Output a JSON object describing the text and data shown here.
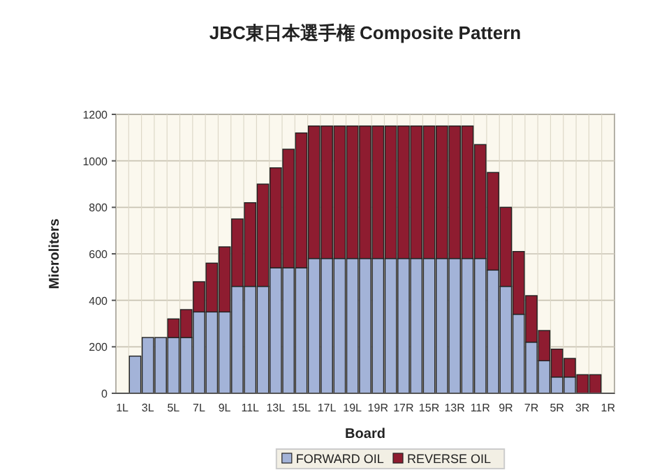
{
  "chart_data": {
    "type": "bar",
    "stacked": true,
    "title": "JBC東日本選手権 Composite Pattern",
    "xlabel": "Board",
    "ylabel": "Microliters",
    "categories": [
      "1L",
      null,
      "3L",
      null,
      "5L",
      null,
      "7L",
      null,
      "9L",
      null,
      "11L",
      null,
      "13L",
      null,
      "15L",
      null,
      "17L",
      null,
      "19L",
      null,
      "19R",
      null,
      "17R",
      null,
      "15R",
      null,
      "13R",
      null,
      "11R",
      null,
      "9R",
      null,
      "7R",
      null,
      "5R",
      null,
      "3R",
      null,
      "1R"
    ],
    "series": [
      {
        "name": "FORWARD OIL",
        "color": "#a3b3d8",
        "values": [
          0,
          160,
          240,
          240,
          240,
          240,
          350,
          350,
          350,
          460,
          460,
          460,
          540,
          540,
          540,
          580,
          580,
          580,
          580,
          580,
          580,
          580,
          580,
          580,
          580,
          580,
          580,
          580,
          580,
          530,
          460,
          340,
          220,
          140,
          70,
          70,
          0,
          0,
          0
        ]
      },
      {
        "name": "REVERSE OIL",
        "color": "#8e1c30",
        "values": [
          0,
          0,
          0,
          0,
          80,
          120,
          130,
          210,
          280,
          290,
          360,
          440,
          430,
          510,
          580,
          570,
          570,
          570,
          570,
          570,
          570,
          570,
          570,
          570,
          570,
          570,
          570,
          570,
          490,
          420,
          340,
          270,
          200,
          130,
          120,
          80,
          80,
          80,
          0
        ]
      }
    ],
    "ylim": [
      0,
      1200
    ],
    "yticks": [
      0,
      200,
      400,
      600,
      800,
      1000,
      1200
    ],
    "grid": true,
    "legend": "bottom"
  }
}
